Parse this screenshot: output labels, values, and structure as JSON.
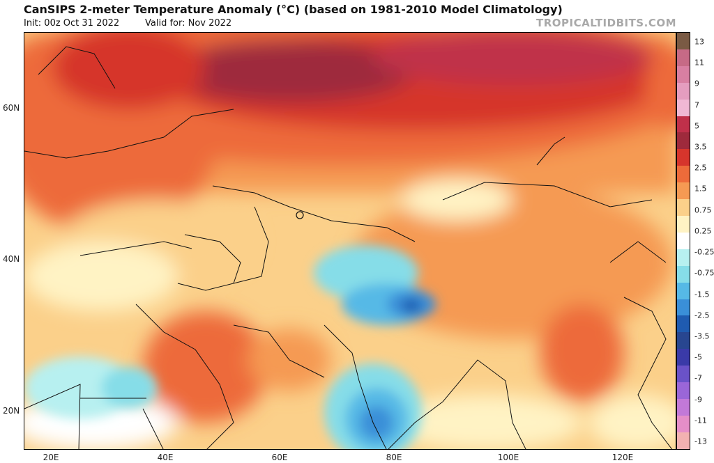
{
  "header": {
    "title": "CanSIPS 2-meter Temperature Anomaly (°C) (based on 1981-2010 Model Climatology)",
    "init": "Init: 00z Oct 31 2022",
    "valid": "Valid for: Nov 2022",
    "brand": "TROPICALTIDBITS.COM"
  },
  "axes": {
    "lat_labels": [
      "60N",
      "40N",
      "20N"
    ],
    "lon_labels": [
      "20E",
      "40E",
      "60E",
      "80E",
      "100E",
      "120E"
    ]
  },
  "colorbar": {
    "labels": [
      "13",
      "11",
      "9",
      "7",
      "5",
      "3.5",
      "2.5",
      "1.5",
      "0.75",
      "0.25",
      "-0.25",
      "-0.75",
      "-1.5",
      "-2.5",
      "-3.5",
      "-5",
      "-7",
      "-9",
      "-11",
      "-13"
    ],
    "colors": [
      "#7a5a44",
      "#c66a86",
      "#d87fa2",
      "#e59dbf",
      "#f0b8d4",
      "#c0304a",
      "#9e2a3c",
      "#d6352c",
      "#ed6b3a",
      "#f59a53",
      "#fbd08a",
      "#fff3c4",
      "#ffffff",
      "#b7f0f0",
      "#86dde8",
      "#56b9e6",
      "#3a8fd8",
      "#1f5bb0",
      "#284690",
      "#3a3aa8",
      "#6a52c8",
      "#9a66d8",
      "#c279d8",
      "#e58ec8",
      "#f2b1b1"
    ]
  },
  "colors": {
    "warm_strong": "#c0304a",
    "warm": "#ed6b3a",
    "neutral": "#ffffff",
    "cool": "#56b9e6",
    "cool_strong": "#1f5bb0"
  }
}
